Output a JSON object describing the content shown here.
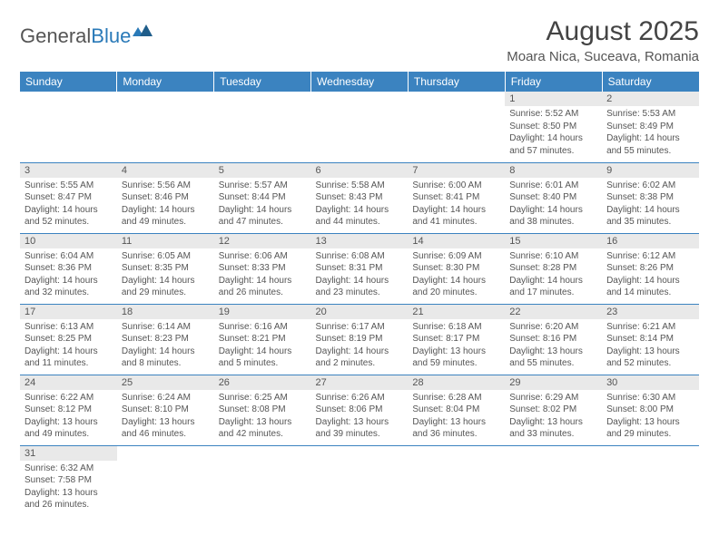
{
  "brand": {
    "name_a": "General",
    "name_b": "Blue"
  },
  "title": "August 2025",
  "location": "Moara Nica, Suceava, Romania",
  "colors": {
    "header_bg": "#3b83c0",
    "header_fg": "#ffffff",
    "daynum_bg": "#e9e9e9",
    "cell_border": "#3b83c0",
    "text": "#555555",
    "brand_blue": "#2a7ab8"
  },
  "day_headers": [
    "Sunday",
    "Monday",
    "Tuesday",
    "Wednesday",
    "Thursday",
    "Friday",
    "Saturday"
  ],
  "weeks": [
    [
      null,
      null,
      null,
      null,
      null,
      {
        "n": "1",
        "sr": "5:52 AM",
        "ss": "8:50 PM",
        "d1": "14 hours",
        "d2": "and 57 minutes."
      },
      {
        "n": "2",
        "sr": "5:53 AM",
        "ss": "8:49 PM",
        "d1": "14 hours",
        "d2": "and 55 minutes."
      }
    ],
    [
      {
        "n": "3",
        "sr": "5:55 AM",
        "ss": "8:47 PM",
        "d1": "14 hours",
        "d2": "and 52 minutes."
      },
      {
        "n": "4",
        "sr": "5:56 AM",
        "ss": "8:46 PM",
        "d1": "14 hours",
        "d2": "and 49 minutes."
      },
      {
        "n": "5",
        "sr": "5:57 AM",
        "ss": "8:44 PM",
        "d1": "14 hours",
        "d2": "and 47 minutes."
      },
      {
        "n": "6",
        "sr": "5:58 AM",
        "ss": "8:43 PM",
        "d1": "14 hours",
        "d2": "and 44 minutes."
      },
      {
        "n": "7",
        "sr": "6:00 AM",
        "ss": "8:41 PM",
        "d1": "14 hours",
        "d2": "and 41 minutes."
      },
      {
        "n": "8",
        "sr": "6:01 AM",
        "ss": "8:40 PM",
        "d1": "14 hours",
        "d2": "and 38 minutes."
      },
      {
        "n": "9",
        "sr": "6:02 AM",
        "ss": "8:38 PM",
        "d1": "14 hours",
        "d2": "and 35 minutes."
      }
    ],
    [
      {
        "n": "10",
        "sr": "6:04 AM",
        "ss": "8:36 PM",
        "d1": "14 hours",
        "d2": "and 32 minutes."
      },
      {
        "n": "11",
        "sr": "6:05 AM",
        "ss": "8:35 PM",
        "d1": "14 hours",
        "d2": "and 29 minutes."
      },
      {
        "n": "12",
        "sr": "6:06 AM",
        "ss": "8:33 PM",
        "d1": "14 hours",
        "d2": "and 26 minutes."
      },
      {
        "n": "13",
        "sr": "6:08 AM",
        "ss": "8:31 PM",
        "d1": "14 hours",
        "d2": "and 23 minutes."
      },
      {
        "n": "14",
        "sr": "6:09 AM",
        "ss": "8:30 PM",
        "d1": "14 hours",
        "d2": "and 20 minutes."
      },
      {
        "n": "15",
        "sr": "6:10 AM",
        "ss": "8:28 PM",
        "d1": "14 hours",
        "d2": "and 17 minutes."
      },
      {
        "n": "16",
        "sr": "6:12 AM",
        "ss": "8:26 PM",
        "d1": "14 hours",
        "d2": "and 14 minutes."
      }
    ],
    [
      {
        "n": "17",
        "sr": "6:13 AM",
        "ss": "8:25 PM",
        "d1": "14 hours",
        "d2": "and 11 minutes."
      },
      {
        "n": "18",
        "sr": "6:14 AM",
        "ss": "8:23 PM",
        "d1": "14 hours",
        "d2": "and 8 minutes."
      },
      {
        "n": "19",
        "sr": "6:16 AM",
        "ss": "8:21 PM",
        "d1": "14 hours",
        "d2": "and 5 minutes."
      },
      {
        "n": "20",
        "sr": "6:17 AM",
        "ss": "8:19 PM",
        "d1": "14 hours",
        "d2": "and 2 minutes."
      },
      {
        "n": "21",
        "sr": "6:18 AM",
        "ss": "8:17 PM",
        "d1": "13 hours",
        "d2": "and 59 minutes."
      },
      {
        "n": "22",
        "sr": "6:20 AM",
        "ss": "8:16 PM",
        "d1": "13 hours",
        "d2": "and 55 minutes."
      },
      {
        "n": "23",
        "sr": "6:21 AM",
        "ss": "8:14 PM",
        "d1": "13 hours",
        "d2": "and 52 minutes."
      }
    ],
    [
      {
        "n": "24",
        "sr": "6:22 AM",
        "ss": "8:12 PM",
        "d1": "13 hours",
        "d2": "and 49 minutes."
      },
      {
        "n": "25",
        "sr": "6:24 AM",
        "ss": "8:10 PM",
        "d1": "13 hours",
        "d2": "and 46 minutes."
      },
      {
        "n": "26",
        "sr": "6:25 AM",
        "ss": "8:08 PM",
        "d1": "13 hours",
        "d2": "and 42 minutes."
      },
      {
        "n": "27",
        "sr": "6:26 AM",
        "ss": "8:06 PM",
        "d1": "13 hours",
        "d2": "and 39 minutes."
      },
      {
        "n": "28",
        "sr": "6:28 AM",
        "ss": "8:04 PM",
        "d1": "13 hours",
        "d2": "and 36 minutes."
      },
      {
        "n": "29",
        "sr": "6:29 AM",
        "ss": "8:02 PM",
        "d1": "13 hours",
        "d2": "and 33 minutes."
      },
      {
        "n": "30",
        "sr": "6:30 AM",
        "ss": "8:00 PM",
        "d1": "13 hours",
        "d2": "and 29 minutes."
      }
    ],
    [
      {
        "n": "31",
        "sr": "6:32 AM",
        "ss": "7:58 PM",
        "d1": "13 hours",
        "d2": "and 26 minutes."
      },
      null,
      null,
      null,
      null,
      null,
      null
    ]
  ],
  "labels": {
    "sunrise": "Sunrise:",
    "sunset": "Sunset:",
    "daylight": "Daylight:"
  }
}
